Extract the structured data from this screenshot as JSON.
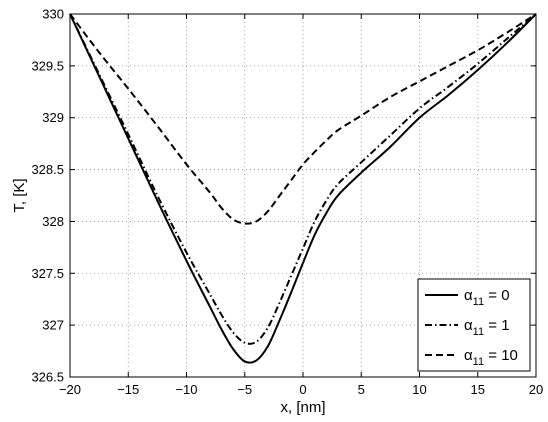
{
  "chart_data": {
    "type": "line",
    "title": "",
    "xlabel": "x, [nm]",
    "ylabel": "T, [K]",
    "xlim": [
      -20,
      20
    ],
    "ylim": [
      326.5,
      330
    ],
    "xticks": [
      "−20",
      "−15",
      "−10",
      "−5",
      "0",
      "5",
      "10",
      "15",
      "20"
    ],
    "yticks": [
      "326.5",
      "327",
      "327.5",
      "328",
      "328.5",
      "329",
      "329.5",
      "330"
    ],
    "grid": true,
    "legend_position": "bottom-right",
    "series": [
      {
        "name": "α11 = 0",
        "legend_symbol": "α",
        "legend_sub": "11",
        "legend_rest": " = 0",
        "style": "solid",
        "x": [
          -20,
          -17.5,
          -15,
          -12.5,
          -10,
          -8,
          -7,
          -6,
          -5,
          -4,
          -3,
          -2,
          -1,
          0,
          1,
          2,
          3,
          5,
          7.5,
          10,
          12.5,
          15,
          17.5,
          20
        ],
        "y": [
          330,
          329.4,
          328.8,
          328.2,
          327.62,
          327.18,
          326.96,
          326.77,
          326.65,
          326.66,
          326.8,
          327.05,
          327.32,
          327.6,
          327.87,
          328.08,
          328.25,
          328.47,
          328.72,
          329.0,
          329.22,
          329.46,
          329.72,
          330
        ]
      },
      {
        "name": "α11 = 1",
        "legend_symbol": "α",
        "legend_sub": "11",
        "legend_rest": " = 1",
        "style": "dashdot",
        "x": [
          -20,
          -17.5,
          -15,
          -12.5,
          -10,
          -8,
          -7,
          -6,
          -5,
          -4,
          -3,
          -2,
          -1,
          0,
          1,
          2,
          3,
          5,
          7.5,
          10,
          12.5,
          15,
          17.5,
          20
        ],
        "y": [
          330,
          329.42,
          328.84,
          328.25,
          327.7,
          327.3,
          327.1,
          326.93,
          326.83,
          326.84,
          326.98,
          327.22,
          327.48,
          327.74,
          328.0,
          328.2,
          328.36,
          328.57,
          328.83,
          329.09,
          329.3,
          329.52,
          329.76,
          330
        ]
      },
      {
        "name": "α11 = 10",
        "legend_symbol": "α",
        "legend_sub": "11",
        "legend_rest": " = 10",
        "style": "dashed",
        "x": [
          -20,
          -17.5,
          -15,
          -12.5,
          -10,
          -8,
          -7,
          -6,
          -5,
          -4,
          -3,
          -2,
          -1,
          0,
          1,
          2,
          3,
          5,
          7.5,
          10,
          12.5,
          15,
          17.5,
          20
        ],
        "y": [
          330,
          329.63,
          329.28,
          328.92,
          328.55,
          328.28,
          328.13,
          328.02,
          327.98,
          328.0,
          328.1,
          328.25,
          328.4,
          328.55,
          328.67,
          328.78,
          328.88,
          329.02,
          329.2,
          329.35,
          329.5,
          329.65,
          329.82,
          330
        ]
      }
    ]
  }
}
